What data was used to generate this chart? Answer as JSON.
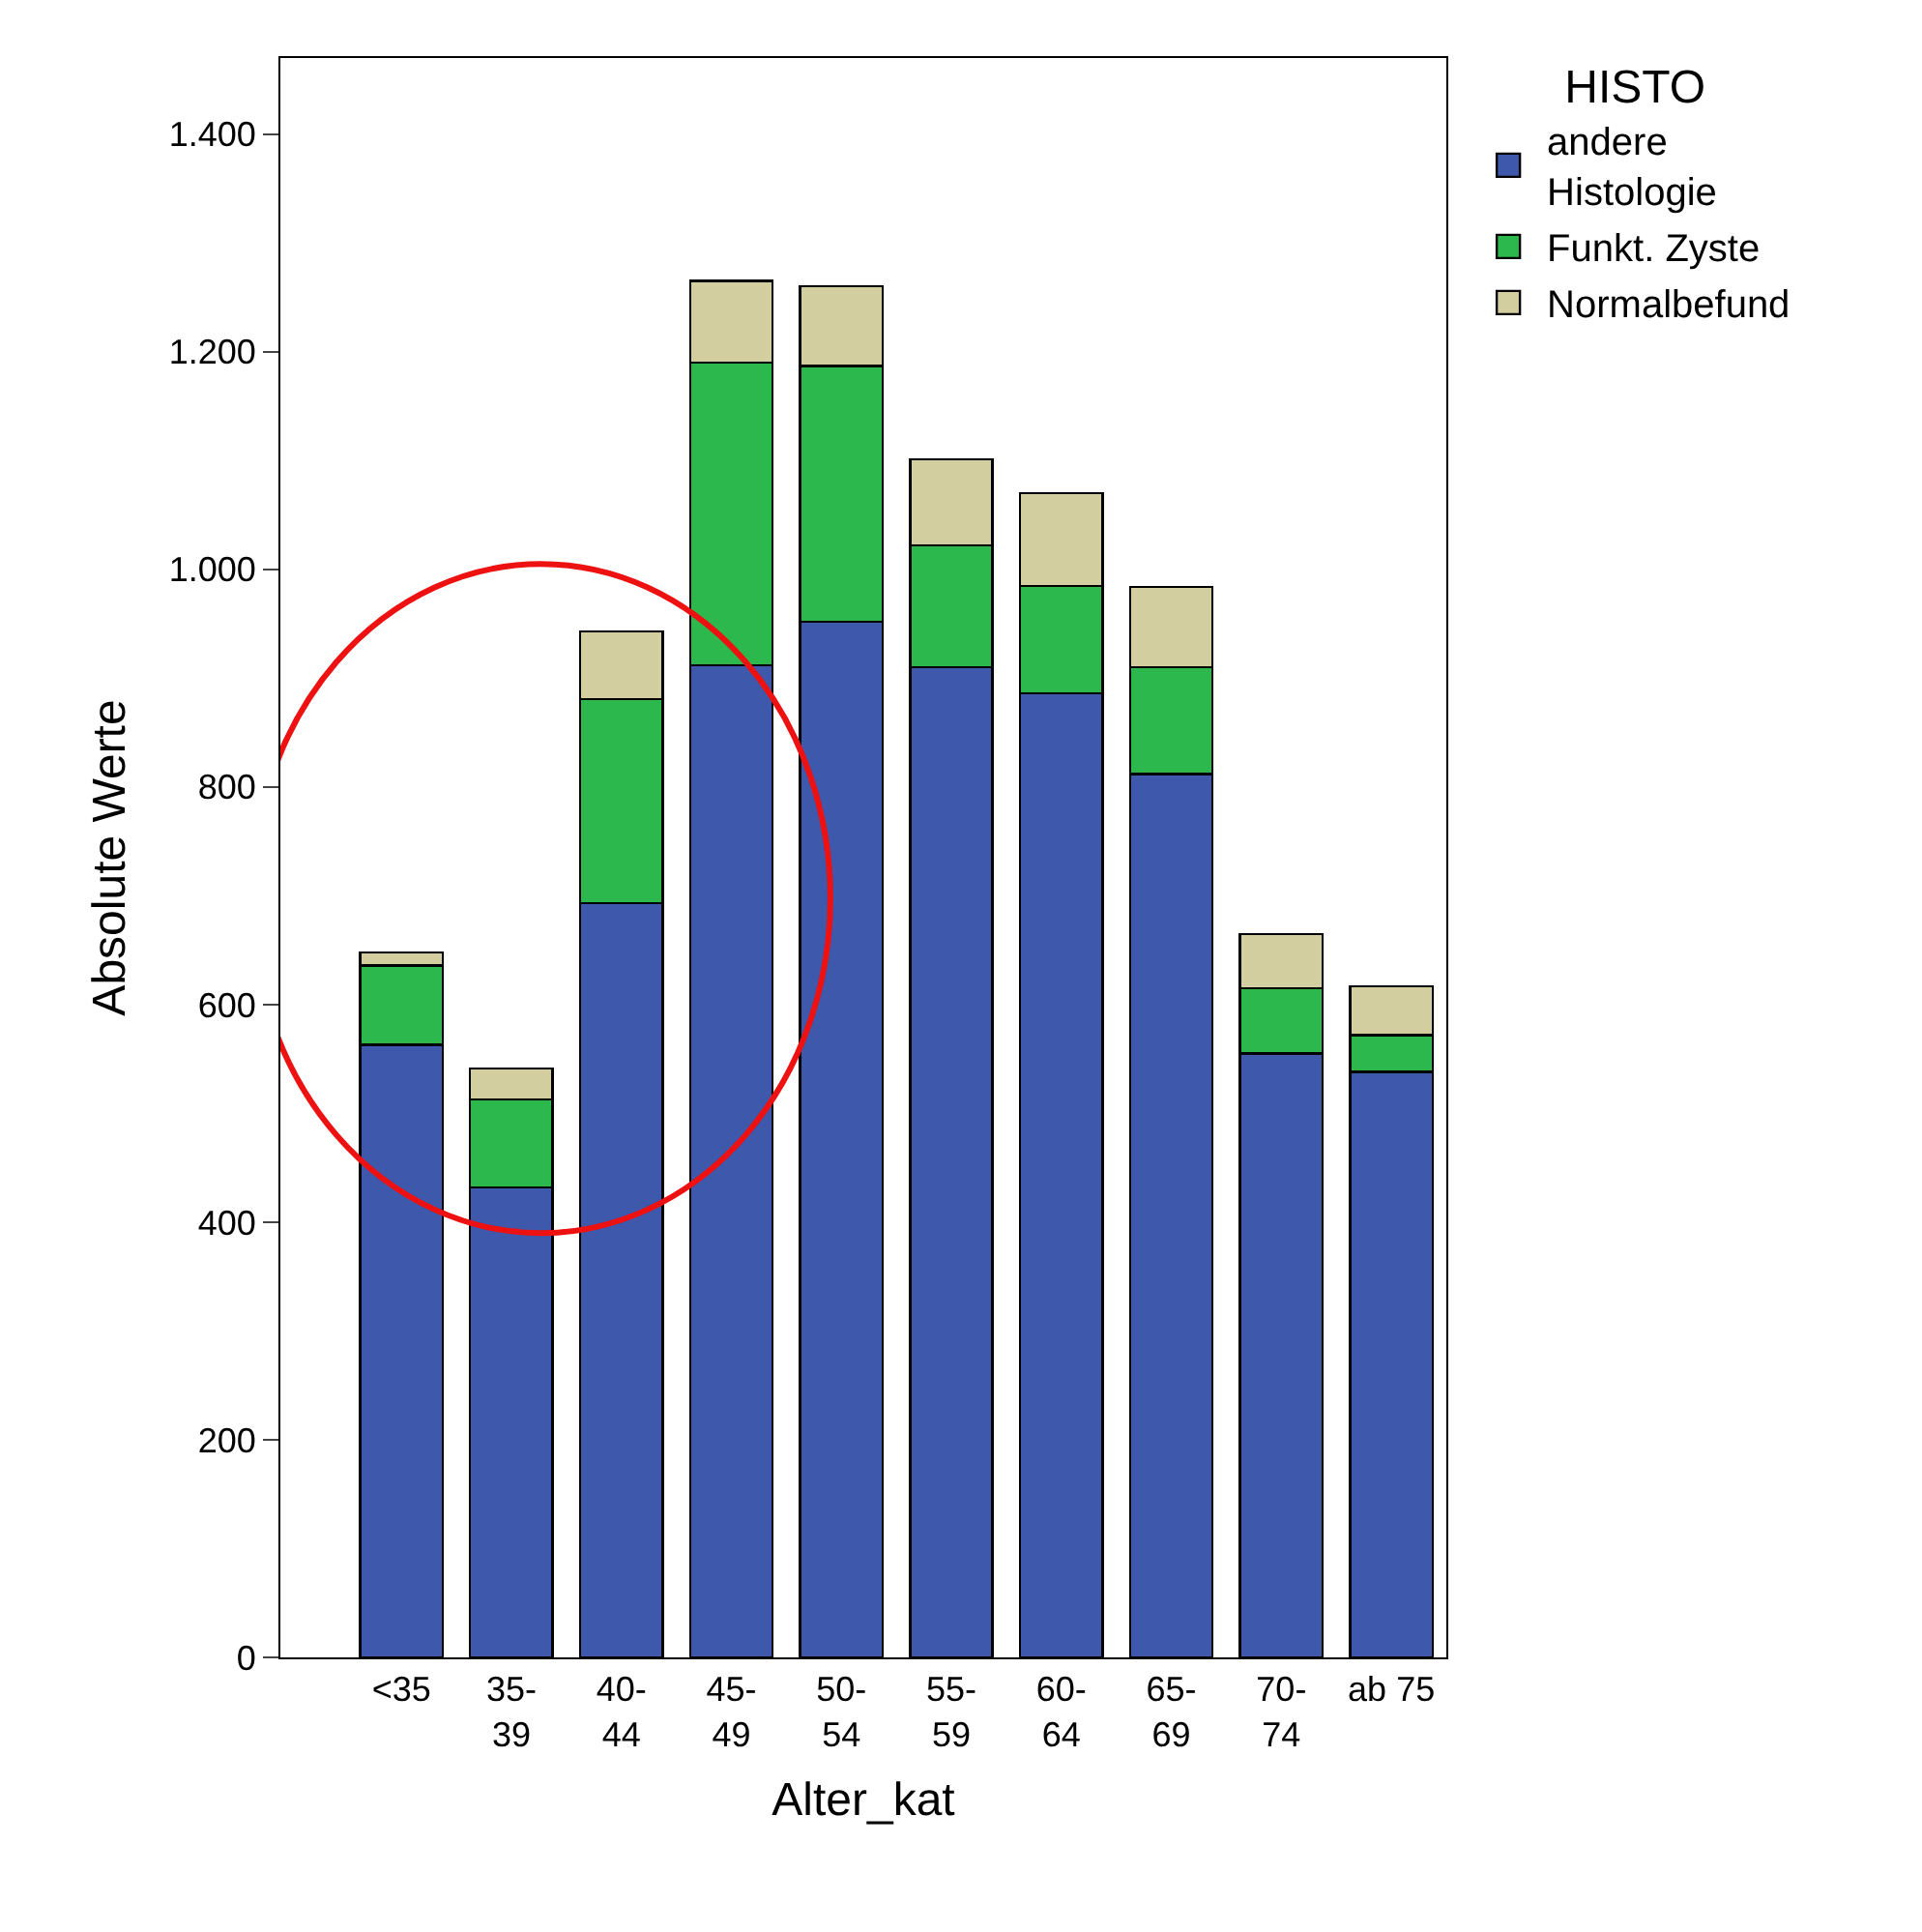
{
  "chart_data": {
    "type": "bar",
    "stacked": true,
    "xlabel": "Alter_kat",
    "ylabel": "Absolute Werte",
    "legend_title": "HISTO",
    "categories": [
      "<35",
      "35-\n39",
      "40-\n44",
      "45-\n49",
      "50-\n54",
      "55-\n59",
      "60-\n64",
      "65-\n69",
      "70-\n74",
      "ab 75"
    ],
    "series": [
      {
        "name": "andere\nHistologie",
        "color": "#3e58ac",
        "values": [
          563,
          432,
          693,
          912,
          952,
          910,
          886,
          812,
          555,
          538
        ]
      },
      {
        "name": "Funkt. Zyste",
        "color": "#2db84d",
        "values": [
          73,
          81,
          188,
          278,
          235,
          112,
          99,
          98,
          60,
          34
        ]
      },
      {
        "name": "Normalbefund",
        "color": "#d3cea0",
        "values": [
          12,
          28,
          62,
          75,
          73,
          79,
          85,
          74,
          50,
          45
        ]
      }
    ],
    "ylim": [
      0,
      1470
    ],
    "yticks": [
      0,
      200,
      400,
      600,
      800,
      {
        "value": 1000,
        "label": "1.000"
      },
      {
        "value": 1200,
        "label": "1.200"
      },
      {
        "value": 1400,
        "label": "1.400"
      }
    ],
    "legend": "top right"
  }
}
